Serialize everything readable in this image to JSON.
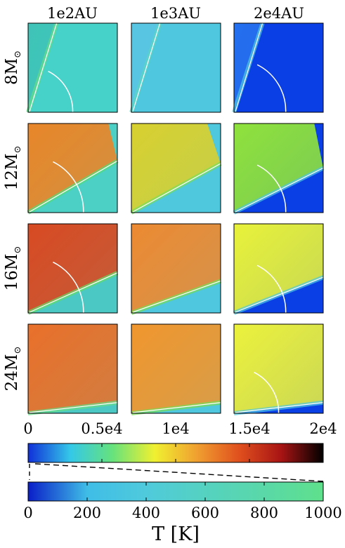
{
  "chart_data": {
    "type": "heatmap",
    "column_headers": [
      "1e2AU",
      "1e3AU",
      "2e4AU"
    ],
    "row_headers": [
      {
        "mass": "8M",
        "sun_symbol": "⊙"
      },
      {
        "mass": "12M",
        "sun_symbol": "⊙"
      },
      {
        "mass": "16M",
        "sun_symbol": "⊙"
      },
      {
        "mass": "24M",
        "sun_symbol": "⊙"
      }
    ],
    "panels": [
      [
        {
          "base": "#46d2c8",
          "cavity": "#3fc3b8",
          "fill": null,
          "boundary": 0.66,
          "halo": "#66dd88",
          "arc_r": 0.5
        },
        {
          "base": "#4fc7de",
          "cavity": "#58c6e3",
          "fill": null,
          "boundary": 0.7,
          "halo": "#5bd6c0",
          "arc_r": 0
        },
        {
          "base": "#0b3fe6",
          "cavity": "#2570ee",
          "fill": null,
          "boundary": 0.75,
          "halo": "#4fc7e0",
          "arc_r": 0.58
        }
      ],
      [
        {
          "base": "#4cd0c6",
          "cavity": "#e8862a",
          "fill": 0.9,
          "boundary": 0.58,
          "halo": "#55dd77",
          "arc_r": 0.62
        },
        {
          "base": "#4fc8de",
          "cavity": "#d8d030",
          "fill": 0.85,
          "boundary": 0.55,
          "halo": "#7ade5a",
          "arc_r": 0
        },
        {
          "base": "#0b3fe6",
          "cavity": "#8fe23c",
          "fill": 0.9,
          "boundary": 0.5,
          "halo": "#4fc7e0",
          "arc_r": 0.58
        }
      ],
      [
        {
          "base": "#4cc8c4",
          "cavity": "#d84a22",
          "fill": 1.0,
          "boundary": 0.45,
          "halo": "#66dd66",
          "arc_r": 0.62
        },
        {
          "base": "#4fc7de",
          "cavity": "#ec8a32",
          "fill": 1.0,
          "boundary": 0.36,
          "halo": "#77dd55",
          "arc_r": 0
        },
        {
          "base": "#0b3fe6",
          "cavity": "#e8f23a",
          "fill": 1.0,
          "boundary": 0.4,
          "halo": "#4fc7e0",
          "arc_r": 0.58
        }
      ],
      [
        {
          "base": "#4cc8c4",
          "cavity": "#e9702a",
          "fill": 1.0,
          "boundary": 0.12,
          "halo": "#66dd88",
          "arc_r": 0
        },
        {
          "base": "#4fc7de",
          "cavity": "#f0962e",
          "fill": 1.0,
          "boundary": 0.12,
          "halo": "#77dd55",
          "arc_r": 0
        },
        {
          "base": "#0b3fe6",
          "cavity": "#ecf23c",
          "fill": 1.0,
          "boundary": 0.12,
          "halo": "#4fc7e0",
          "arc_r": 0.5
        }
      ]
    ],
    "upper_colorbar": {
      "ticks": [
        "0",
        "0.5e4",
        "1e4",
        "1.5e4",
        "2e4"
      ],
      "range": [
        0,
        20000
      ],
      "colormap": [
        "#1030d8",
        "#34c8e8",
        "#66e27c",
        "#f0f030",
        "#f0a030",
        "#e0501e",
        "#a81414",
        "#000000"
      ]
    },
    "lower_colorbar": {
      "ticks": [
        "0",
        "200",
        "400",
        "600",
        "800",
        "1000"
      ],
      "range": [
        0,
        1000
      ],
      "colormap": [
        "#0a1ec8",
        "#3fbde6",
        "#4fcadc",
        "#55d2c0",
        "#5ad8a8",
        "#5ee08c"
      ]
    },
    "xlabel": "T [K]"
  }
}
